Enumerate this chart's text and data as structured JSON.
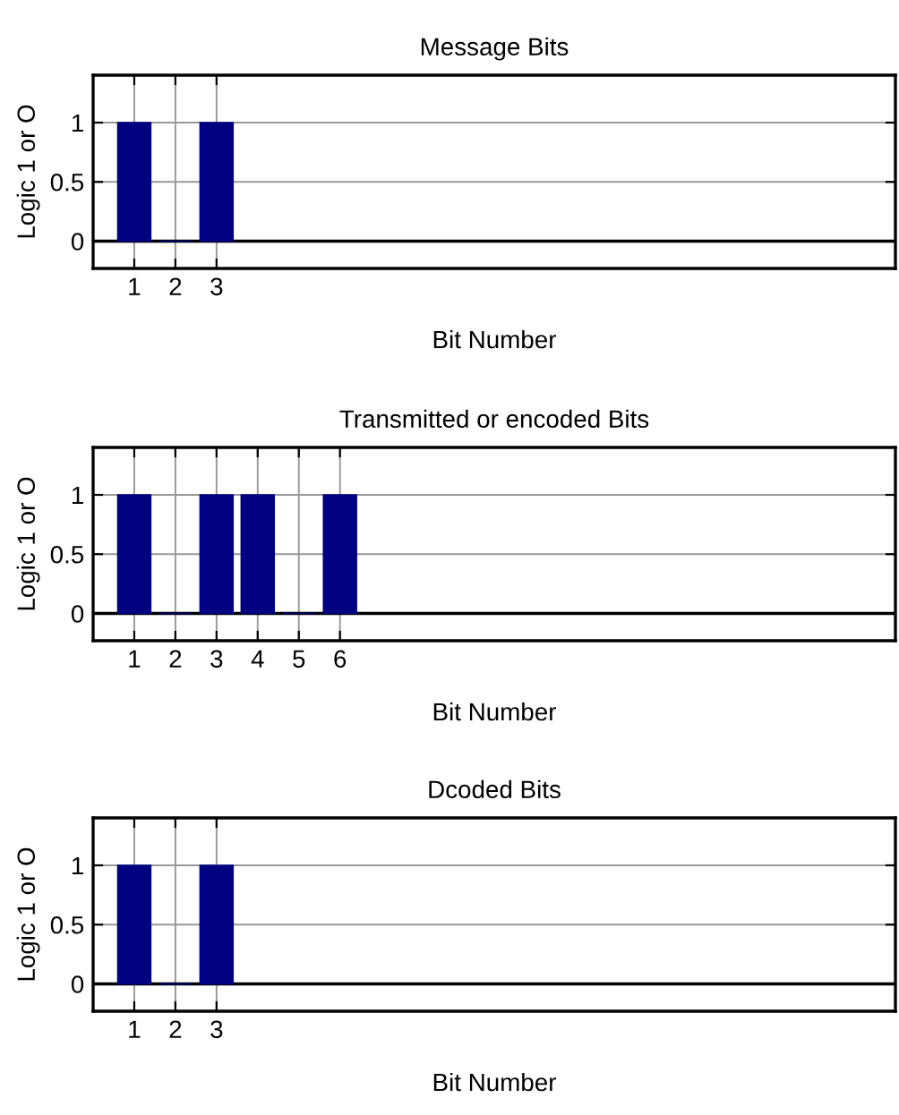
{
  "chart_data": [
    {
      "type": "bar",
      "title": "Message Bits",
      "xlabel": "Bit Number",
      "ylabel": "Logic 1 or O",
      "x": [
        1,
        2,
        3
      ],
      "values": [
        1,
        0,
        1
      ],
      "color": "#000080",
      "xlim": [
        0,
        19.5
      ],
      "xticks": [
        1,
        2,
        3
      ],
      "ylim": [
        -0.23,
        1.4
      ],
      "yticks": [
        0,
        0.5,
        1
      ],
      "grid": true
    },
    {
      "type": "bar",
      "title": "Transmitted or encoded Bits",
      "xlabel": "Bit Number",
      "ylabel": "Logic 1 or O",
      "x": [
        1,
        2,
        3,
        4,
        5,
        6
      ],
      "values": [
        1,
        0,
        1,
        1,
        0,
        1
      ],
      "color": "#000080",
      "xlim": [
        0,
        19.5
      ],
      "xticks": [
        1,
        2,
        3,
        4,
        5,
        6
      ],
      "ylim": [
        -0.23,
        1.4
      ],
      "yticks": [
        0,
        0.5,
        1
      ],
      "grid": true
    },
    {
      "type": "bar",
      "title": "Dcoded Bits",
      "xlabel": "Bit Number",
      "ylabel": "Logic 1 or O",
      "x": [
        1,
        2,
        3
      ],
      "values": [
        1,
        0,
        1
      ],
      "color": "#000080",
      "xlim": [
        0,
        19.5
      ],
      "xticks": [
        1,
        2,
        3
      ],
      "ylim": [
        -0.23,
        1.4
      ],
      "yticks": [
        0,
        0.5,
        1
      ],
      "grid": true
    }
  ]
}
